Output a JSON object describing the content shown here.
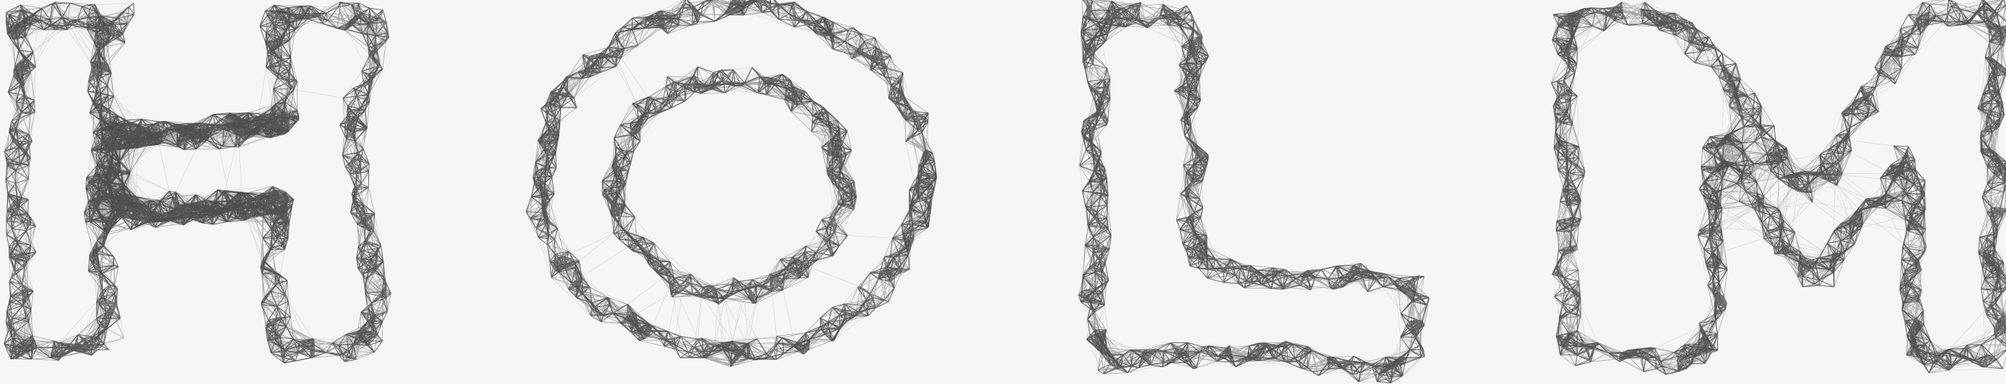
{
  "artwork": {
    "letters": [
      "H",
      "O",
      "L",
      "M"
    ],
    "background": "#f5f5f5",
    "stroke_color": "#111111"
  }
}
